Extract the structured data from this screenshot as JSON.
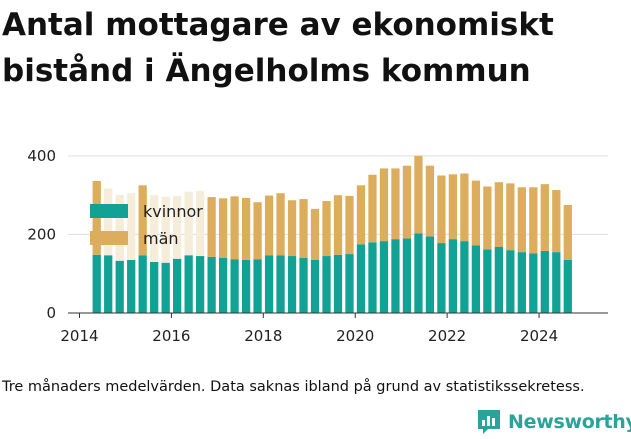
{
  "title": "Antal mottagare av ekonomiskt bistånd i Ängelholms kommun",
  "caption": "Tre månaders medelvärden. Data saknas ibland på grund av statistikssekretess.",
  "brand": "Newsworthy",
  "colors": {
    "kvinnor": "#12a195",
    "man": "#dcad5d",
    "man_uncertain": "#f5ecd9",
    "grid": "#dddddd",
    "brand": "#2aa39a"
  },
  "chart_data": {
    "type": "bar",
    "stacked": true,
    "x": [
      "2014-Q2",
      "2014-Q3",
      "2014-Q4",
      "2015-Q1",
      "2015-Q2",
      "2015-Q3",
      "2015-Q4",
      "2016-Q1",
      "2016-Q2",
      "2016-Q3",
      "2016-Q4",
      "2017-Q1",
      "2017-Q2",
      "2017-Q3",
      "2017-Q4",
      "2018-Q1",
      "2018-Q2",
      "2018-Q3",
      "2018-Q4",
      "2019-Q1",
      "2019-Q2",
      "2019-Q3",
      "2019-Q4",
      "2020-Q1",
      "2020-Q2",
      "2020-Q3",
      "2020-Q4",
      "2021-Q1",
      "2021-Q2",
      "2021-Q3",
      "2021-Q4",
      "2022-Q1",
      "2022-Q2",
      "2022-Q3",
      "2022-Q4",
      "2023-Q1",
      "2023-Q2",
      "2023-Q3",
      "2023-Q4",
      "2024-Q1",
      "2024-Q2",
      "2024-Q3"
    ],
    "series": [
      {
        "name": "kvinnor",
        "values": [
          148,
          147,
          133,
          135,
          147,
          130,
          128,
          138,
          147,
          145,
          143,
          140,
          137,
          135,
          137,
          147,
          147,
          145,
          140,
          135,
          145,
          148,
          150,
          175,
          180,
          183,
          188,
          190,
          203,
          195,
          178,
          188,
          183,
          172,
          162,
          168,
          160,
          155,
          152,
          158,
          155,
          135
        ]
      },
      {
        "name": "män",
        "values": [
          188,
          170,
          168,
          170,
          178,
          170,
          168,
          160,
          162,
          165,
          152,
          152,
          160,
          158,
          145,
          152,
          158,
          142,
          150,
          130,
          140,
          152,
          148,
          150,
          172,
          185,
          180,
          185,
          197,
          180,
          172,
          165,
          172,
          165,
          160,
          165,
          170,
          165,
          168,
          170,
          158,
          140
        ]
      }
    ],
    "uncertain_man": [
      false,
      true,
      true,
      true,
      false,
      true,
      true,
      true,
      true,
      true,
      false,
      false,
      false,
      false,
      false,
      false,
      false,
      false,
      false,
      false,
      false,
      false,
      false,
      false,
      false,
      false,
      false,
      false,
      false,
      false,
      false,
      false,
      false,
      false,
      false,
      false,
      false,
      false,
      false,
      false,
      false,
      false
    ],
    "xticks": [
      "2014",
      "2016",
      "2018",
      "2020",
      "2022",
      "2024"
    ],
    "yticks": [
      "0",
      "200",
      "400"
    ],
    "ylim": [
      0,
      420
    ],
    "xlim": [
      "2013-Q4",
      "2025-Q3"
    ],
    "legend": [
      "kvinnor",
      "män"
    ],
    "legend_position": "top-left",
    "grid": true
  }
}
